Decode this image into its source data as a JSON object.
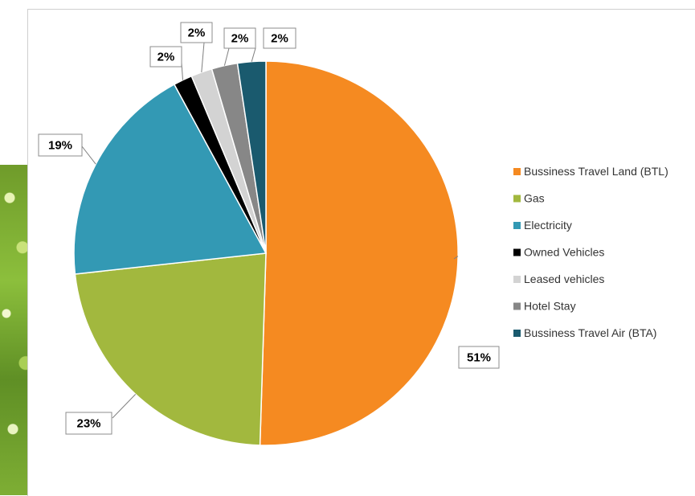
{
  "chart_data": {
    "type": "pie",
    "title": "",
    "legend_position": "right",
    "slices": [
      {
        "label": "Bussiness Travel Land (BTL)",
        "value": 51,
        "data_label": "51%",
        "color": "#f58a21"
      },
      {
        "label": "Gas",
        "value": 23,
        "data_label": "23%",
        "color": "#a2b83e"
      },
      {
        "label": "Electricity",
        "value": 19,
        "data_label": "19%",
        "color": "#3399b4"
      },
      {
        "label": "Owned Vehicles",
        "value": 1.6,
        "data_label": "2%",
        "color": "#000000"
      },
      {
        "label": "Leased vehicles",
        "value": 1.8,
        "data_label": "2%",
        "color": "#d3d3d3"
      },
      {
        "label": "Hotel Stay",
        "value": 2.2,
        "data_label": "2%",
        "color": "#878787"
      },
      {
        "label": "Bussiness Travel Air (BTA)",
        "value": 2.4,
        "data_label": "2%",
        "color": "#1a5a6e"
      }
    ]
  }
}
